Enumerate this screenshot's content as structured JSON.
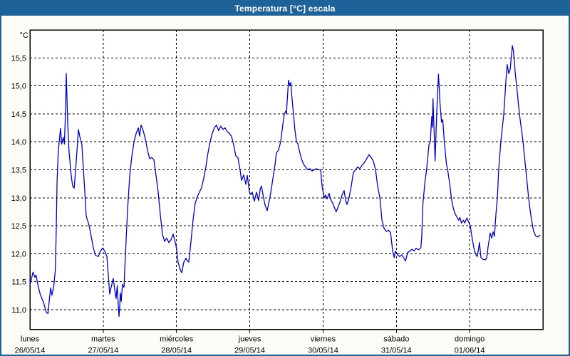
{
  "window": {
    "title": "Temperatura [°C] escala"
  },
  "colors": {
    "accent": "#1D6298",
    "window_background": "#FCFCF6",
    "plot_background": "#FFFFFF",
    "grid": "#000000",
    "series_line": "#0000CC",
    "title_text": "#FFFFFF",
    "label_text": "#000000"
  },
  "chart_data": {
    "type": "line",
    "title": "Temperatura [°C] escala",
    "xlabel": "",
    "ylabel": "°C",
    "grid": true,
    "legend": false,
    "decimal_separator": ",",
    "ylim": [
      10.65,
      16.0
    ],
    "x_hours_range": [
      0,
      168
    ],
    "y_ticks": {
      "values": [
        11.0,
        11.5,
        12.0,
        12.5,
        13.0,
        13.5,
        14.0,
        14.5,
        15.0,
        15.5
      ],
      "labels": [
        "11,0",
        "11,5",
        "12,0",
        "12,5",
        "13,0",
        "13,5",
        "14,0",
        "14,5",
        "15,0",
        "15,5"
      ]
    },
    "days": [
      {
        "name": "lunes",
        "date": "26/05/14"
      },
      {
        "name": "martes",
        "date": "27/05/14"
      },
      {
        "name": "miércoles",
        "date": "28/05/14"
      },
      {
        "name": "jueves",
        "date": "29/05/14"
      },
      {
        "name": "viernes",
        "date": "30/05/14"
      },
      {
        "name": "sábado",
        "date": "31/05/14"
      },
      {
        "name": "domingo",
        "date": "01/06/14"
      }
    ],
    "series": [
      {
        "name": "Temperatura",
        "unit": "°C",
        "color": "#0000CC",
        "points": [
          [
            0,
            11.44
          ],
          [
            1.0,
            11.67
          ],
          [
            1.6,
            11.58
          ],
          [
            2.0,
            11.62
          ],
          [
            2.6,
            11.45
          ],
          [
            3.3,
            11.29
          ],
          [
            4.5,
            11.12
          ],
          [
            5.4,
            10.95
          ],
          [
            5.9,
            10.93
          ],
          [
            6.4,
            11.2
          ],
          [
            6.8,
            11.39
          ],
          [
            7.2,
            11.26
          ],
          [
            7.8,
            11.41
          ],
          [
            8.3,
            11.7
          ],
          [
            8.6,
            12.4
          ],
          [
            8.9,
            13.3
          ],
          [
            9.3,
            13.85
          ],
          [
            10.0,
            14.24
          ],
          [
            10.4,
            13.96
          ],
          [
            10.9,
            14.08
          ],
          [
            11.3,
            13.96
          ],
          [
            11.7,
            14.6
          ],
          [
            11.9,
            15.22
          ],
          [
            12.4,
            14.3
          ],
          [
            12.8,
            13.83
          ],
          [
            13.5,
            13.4
          ],
          [
            14.0,
            13.21
          ],
          [
            14.5,
            13.17
          ],
          [
            15.2,
            13.67
          ],
          [
            15.9,
            14.22
          ],
          [
            16.3,
            14.1
          ],
          [
            17.0,
            13.95
          ],
          [
            17.5,
            13.52
          ],
          [
            18.0,
            13.1
          ],
          [
            18.4,
            12.68
          ],
          [
            19.4,
            12.5
          ],
          [
            20.1,
            12.3
          ],
          [
            20.8,
            12.1
          ],
          [
            21.5,
            11.97
          ],
          [
            22.4,
            11.95
          ],
          [
            23.1,
            12.05
          ],
          [
            23.8,
            12.1
          ],
          [
            24.5,
            12.05
          ],
          [
            25.2,
            11.95
          ],
          [
            25.7,
            11.6
          ],
          [
            26.1,
            11.28
          ],
          [
            26.8,
            11.45
          ],
          [
            27.3,
            11.56
          ],
          [
            27.8,
            11.35
          ],
          [
            28.2,
            11.2
          ],
          [
            28.6,
            11.43
          ],
          [
            28.9,
            11.1
          ],
          [
            29.2,
            10.88
          ],
          [
            29.4,
            11.05
          ],
          [
            29.6,
            11.3
          ],
          [
            29.9,
            11.15
          ],
          [
            30.3,
            11.45
          ],
          [
            30.8,
            11.4
          ],
          [
            31.3,
            12.0
          ],
          [
            32.0,
            12.8
          ],
          [
            32.7,
            13.4
          ],
          [
            33.4,
            13.75
          ],
          [
            34.1,
            14.0
          ],
          [
            34.8,
            14.15
          ],
          [
            35.5,
            14.25
          ],
          [
            35.9,
            14.1
          ],
          [
            36.4,
            14.3
          ],
          [
            37.1,
            14.2
          ],
          [
            37.8,
            14.05
          ],
          [
            38.5,
            13.85
          ],
          [
            39.2,
            13.7
          ],
          [
            39.9,
            13.72
          ],
          [
            40.6,
            13.68
          ],
          [
            41.3,
            13.4
          ],
          [
            42.0,
            13.1
          ],
          [
            42.7,
            12.7
          ],
          [
            43.4,
            12.35
          ],
          [
            44.1,
            12.22
          ],
          [
            44.8,
            12.28
          ],
          [
            45.5,
            12.2
          ],
          [
            46.2,
            12.25
          ],
          [
            46.9,
            12.35
          ],
          [
            47.4,
            12.25
          ],
          [
            48.0,
            12.1
          ],
          [
            48.5,
            11.85
          ],
          [
            49.2,
            11.72
          ],
          [
            49.7,
            11.66
          ],
          [
            50.4,
            11.85
          ],
          [
            51.1,
            11.92
          ],
          [
            51.5,
            11.88
          ],
          [
            52.0,
            11.85
          ],
          [
            52.7,
            12.2
          ],
          [
            53.4,
            12.6
          ],
          [
            54.1,
            12.9
          ],
          [
            54.8,
            13.02
          ],
          [
            55.5,
            13.1
          ],
          [
            56.2,
            13.18
          ],
          [
            56.9,
            13.35
          ],
          [
            57.6,
            13.55
          ],
          [
            58.3,
            13.8
          ],
          [
            59.0,
            14.0
          ],
          [
            59.7,
            14.15
          ],
          [
            60.4,
            14.25
          ],
          [
            61.1,
            14.3
          ],
          [
            61.8,
            14.2
          ],
          [
            62.5,
            14.28
          ],
          [
            63.2,
            14.22
          ],
          [
            63.9,
            14.25
          ],
          [
            64.6,
            14.18
          ],
          [
            65.3,
            14.15
          ],
          [
            66.0,
            14.1
          ],
          [
            66.7,
            13.95
          ],
          [
            67.4,
            13.75
          ],
          [
            68.1,
            13.72
          ],
          [
            68.8,
            13.5
          ],
          [
            69.3,
            13.31
          ],
          [
            70.0,
            13.41
          ],
          [
            70.7,
            13.24
          ],
          [
            71.2,
            13.4
          ],
          [
            71.9,
            13.1
          ],
          [
            72.3,
            13.06
          ],
          [
            72.8,
            13.1
          ],
          [
            73.5,
            12.94
          ],
          [
            74.2,
            13.1
          ],
          [
            74.9,
            12.95
          ],
          [
            75.4,
            13.15
          ],
          [
            75.8,
            13.21
          ],
          [
            76.5,
            13.0
          ],
          [
            77.0,
            12.87
          ],
          [
            77.7,
            12.77
          ],
          [
            78.4,
            12.95
          ],
          [
            78.9,
            13.1
          ],
          [
            79.6,
            13.35
          ],
          [
            80.3,
            13.6
          ],
          [
            80.7,
            13.8
          ],
          [
            81.4,
            13.85
          ],
          [
            82.1,
            14.0
          ],
          [
            82.8,
            14.3
          ],
          [
            83.3,
            14.5
          ],
          [
            83.8,
            14.55
          ],
          [
            84.0,
            14.5
          ],
          [
            84.2,
            14.7
          ],
          [
            84.7,
            15.1
          ],
          [
            85.1,
            15.0
          ],
          [
            85.4,
            15.06
          ],
          [
            85.8,
            14.8
          ],
          [
            86.3,
            14.5
          ],
          [
            86.8,
            14.2
          ],
          [
            87.3,
            14.0
          ],
          [
            87.7,
            13.97
          ],
          [
            88.2,
            13.85
          ],
          [
            88.9,
            13.7
          ],
          [
            89.6,
            13.6
          ],
          [
            90.3,
            13.55
          ],
          [
            91.0,
            13.5
          ],
          [
            91.7,
            13.52
          ],
          [
            92.4,
            13.48
          ],
          [
            93.1,
            13.5
          ],
          [
            93.8,
            13.52
          ],
          [
            94.5,
            13.5
          ],
          [
            95.2,
            13.5
          ],
          [
            95.7,
            13.2
          ],
          [
            96.4,
            13.0
          ],
          [
            96.8,
            13.05
          ],
          [
            97.3,
            12.98
          ],
          [
            98.0,
            13.08
          ],
          [
            98.4,
            12.98
          ],
          [
            99.2,
            12.9
          ],
          [
            99.9,
            12.8
          ],
          [
            100.3,
            12.75
          ],
          [
            101.0,
            12.85
          ],
          [
            101.7,
            12.95
          ],
          [
            102.2,
            13.05
          ],
          [
            102.9,
            13.13
          ],
          [
            103.4,
            12.95
          ],
          [
            103.8,
            12.88
          ],
          [
            104.5,
            13.0
          ],
          [
            105.2,
            13.2
          ],
          [
            105.9,
            13.45
          ],
          [
            106.6,
            13.5
          ],
          [
            107.3,
            13.55
          ],
          [
            108.0,
            13.52
          ],
          [
            108.7,
            13.58
          ],
          [
            109.4,
            13.62
          ],
          [
            110.1,
            13.68
          ],
          [
            111.0,
            13.77
          ],
          [
            111.8,
            13.72
          ],
          [
            112.5,
            13.65
          ],
          [
            113.2,
            13.5
          ],
          [
            113.9,
            13.2
          ],
          [
            114.6,
            13.0
          ],
          [
            115.3,
            12.6
          ],
          [
            116.0,
            12.45
          ],
          [
            116.7,
            12.4
          ],
          [
            117.4,
            12.42
          ],
          [
            118.1,
            12.38
          ],
          [
            118.8,
            12.05
          ],
          [
            119.3,
            11.93
          ],
          [
            119.7,
            12.05
          ],
          [
            120.4,
            11.98
          ],
          [
            121.1,
            11.95
          ],
          [
            121.8,
            11.98
          ],
          [
            122.5,
            11.92
          ],
          [
            123.0,
            11.87
          ],
          [
            123.7,
            12.02
          ],
          [
            124.4,
            12.05
          ],
          [
            125.1,
            12.08
          ],
          [
            125.8,
            12.05
          ],
          [
            126.5,
            12.1
          ],
          [
            127.2,
            12.07
          ],
          [
            128.0,
            12.1
          ],
          [
            128.3,
            12.3
          ],
          [
            128.7,
            12.9
          ],
          [
            129.4,
            13.3
          ],
          [
            129.9,
            13.5
          ],
          [
            130.7,
            13.95
          ],
          [
            131.1,
            14.0
          ],
          [
            131.6,
            14.45
          ],
          [
            131.8,
            14.26
          ],
          [
            132.0,
            14.77
          ],
          [
            132.4,
            14.15
          ],
          [
            132.7,
            13.66
          ],
          [
            133.2,
            14.5
          ],
          [
            133.8,
            15.21
          ],
          [
            134.3,
            14.68
          ],
          [
            134.8,
            14.35
          ],
          [
            135.2,
            14.4
          ],
          [
            135.7,
            14.0
          ],
          [
            136.4,
            13.6
          ],
          [
            136.8,
            13.5
          ],
          [
            137.6,
            13.2
          ],
          [
            138.0,
            13.0
          ],
          [
            138.7,
            12.8
          ],
          [
            139.4,
            12.7
          ],
          [
            139.9,
            12.65
          ],
          [
            140.4,
            12.6
          ],
          [
            140.8,
            12.65
          ],
          [
            141.3,
            12.55
          ],
          [
            142.0,
            12.6
          ],
          [
            142.4,
            12.55
          ],
          [
            143.1,
            12.64
          ],
          [
            144.2,
            12.5
          ],
          [
            144.9,
            12.25
          ],
          [
            145.6,
            12.05
          ],
          [
            146.1,
            11.98
          ],
          [
            146.5,
            11.95
          ],
          [
            147.2,
            12.2
          ],
          [
            147.7,
            11.93
          ],
          [
            148.4,
            11.9
          ],
          [
            149.1,
            11.89
          ],
          [
            149.6,
            11.92
          ],
          [
            150.0,
            12.11
          ],
          [
            150.7,
            12.37
          ],
          [
            151.2,
            12.28
          ],
          [
            151.7,
            12.39
          ],
          [
            152.1,
            12.31
          ],
          [
            152.6,
            12.7
          ],
          [
            153.1,
            13.0
          ],
          [
            153.5,
            13.5
          ],
          [
            154.2,
            14.0
          ],
          [
            155.2,
            14.5
          ],
          [
            155.9,
            15.1
          ],
          [
            156.3,
            15.38
          ],
          [
            156.8,
            15.22
          ],
          [
            157.3,
            15.3
          ],
          [
            158.0,
            15.72
          ],
          [
            158.4,
            15.6
          ],
          [
            158.9,
            15.25
          ],
          [
            159.4,
            15.0
          ],
          [
            160.3,
            14.5
          ],
          [
            161.5,
            14.0
          ],
          [
            162.4,
            13.5
          ],
          [
            163.3,
            13.0
          ],
          [
            164.0,
            12.7
          ],
          [
            164.9,
            12.41
          ],
          [
            165.6,
            12.32
          ],
          [
            166.3,
            12.3
          ],
          [
            167.0,
            12.33
          ]
        ]
      }
    ]
  }
}
